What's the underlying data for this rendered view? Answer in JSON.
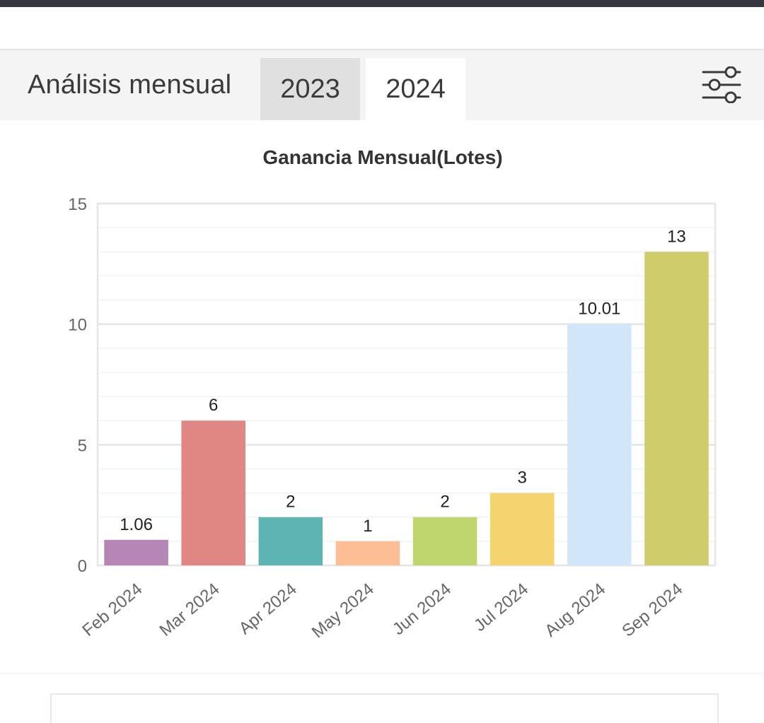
{
  "header": {
    "title": "Análisis mensual",
    "tabs": [
      {
        "label": "2023",
        "active": false
      },
      {
        "label": "2024",
        "active": true
      }
    ],
    "filter_icon": "sliders-icon"
  },
  "chart_data": {
    "type": "bar",
    "title": "Ganancia Mensual(Lotes)",
    "xlabel": "",
    "ylabel": "",
    "ylim": [
      0,
      15
    ],
    "yticks": [
      0,
      5,
      10,
      15
    ],
    "grid": true,
    "categories": [
      "Feb 2024",
      "Mar 2024",
      "Apr 2024",
      "May 2024",
      "Jun 2024",
      "Jul 2024",
      "Aug 2024",
      "Sep 2024"
    ],
    "values": [
      1.06,
      6,
      2,
      1,
      2,
      3,
      10.01,
      13
    ],
    "value_labels": [
      "1.06",
      "6",
      "2",
      "1",
      "2",
      "3",
      "10.01",
      "13"
    ],
    "colors": [
      "#b586b6",
      "#e08683",
      "#5db4b3",
      "#fdbe96",
      "#bfd66e",
      "#f5d470",
      "#d1e6f8",
      "#cfcd6b"
    ]
  }
}
